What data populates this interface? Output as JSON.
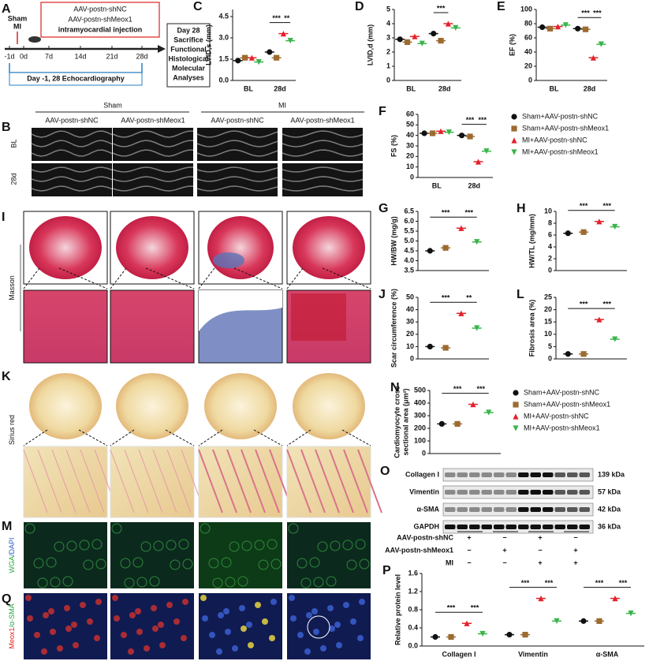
{
  "timeline": {
    "panel": "A",
    "sham": "Sham",
    "mi": "MI",
    "injection": [
      "AAV-postn-shNC",
      "AAV-postn-shMeox1",
      "intramyocardial injection"
    ],
    "days": [
      "-1d",
      "0d",
      "7d",
      "14d",
      "21d",
      "28d"
    ],
    "echo": "Day -1, 28 Echocardiography",
    "endpoint": [
      "Day 28",
      "Sacrifice",
      "Functional",
      "Histological",
      "Molecular",
      "Analyses"
    ]
  },
  "echo": {
    "panel": "B",
    "groups": [
      "Sham",
      "MI"
    ],
    "columns": [
      "AAV-postn-shNC",
      "AAV-postn-shMeox1",
      "AAV-postn-shNC",
      "AAV-postn-shMeox1"
    ],
    "rows": [
      "BL",
      "28d"
    ]
  },
  "masson": {
    "panel": "I",
    "label": [
      "Masson"
    ]
  },
  "sirius": {
    "panel": "K",
    "label": [
      "Sirius red"
    ]
  },
  "wga": {
    "panel": "M",
    "label": [
      "WGA",
      "/DAPI"
    ]
  },
  "meox": {
    "panel": "Q",
    "label": [
      "Meox1",
      "/α-SMA"
    ]
  },
  "blot": {
    "panel": "O",
    "proteins": [
      "Collagen I",
      "Vimentin",
      "α-SMA",
      "GAPDH"
    ],
    "sizes": [
      "139 kDa",
      "57 kDa",
      "42 kDa",
      "36 kDa"
    ],
    "conditions": [
      {
        "name": "AAV-postn-shNC",
        "signs": [
          "+",
          "−",
          "+",
          "−"
        ]
      },
      {
        "name": "AAV-postn-shMeox1",
        "signs": [
          "−",
          "+",
          "−",
          "+"
        ]
      },
      {
        "name": "MI",
        "signs": [
          "−",
          "−",
          "+",
          "+"
        ]
      }
    ]
  },
  "chart_data": [
    {
      "type": "dot",
      "panel": "C",
      "y_label": [
        "LVID,s (mm)"
      ],
      "categories": [
        "BL",
        "28d"
      ],
      "ylim": [
        0,
        5
      ],
      "yticks": [
        {
          "value": 0,
          "label": "0.0"
        },
        1.5,
        {
          "value": 3,
          "label": "3.0"
        },
        4.5
      ],
      "annotations": [
        "***",
        "**"
      ],
      "series": [
        {
          "color": "#111111",
          "values": [
            1.4,
            2.0
          ]
        },
        {
          "color": "#9c6b30",
          "values": [
            1.6,
            1.6
          ]
        },
        {
          "color": "#e4212b",
          "values": [
            1.6,
            3.3
          ]
        },
        {
          "color": "#39b54a",
          "values": [
            1.3,
            2.8
          ]
        }
      ]
    },
    {
      "type": "dot",
      "panel": "D",
      "y_label": [
        "LVID,d (mm)"
      ],
      "categories": [
        "BL",
        "28d"
      ],
      "ylim": [
        0,
        5
      ],
      "yticks": [
        0,
        1,
        2,
        3,
        4,
        5
      ],
      "annotations": [
        "***"
      ],
      "series": [
        {
          "color": "#111111",
          "values": [
            2.9,
            3.3
          ]
        },
        {
          "color": "#9c6b30",
          "values": [
            2.7,
            2.8
          ]
        },
        {
          "color": "#e4212b",
          "values": [
            3.1,
            4.0
          ]
        },
        {
          "color": "#39b54a",
          "values": [
            2.6,
            3.7
          ]
        }
      ]
    },
    {
      "type": "dot",
      "panel": "E",
      "y_label": [
        "EF (%)"
      ],
      "categories": [
        "BL",
        "28d"
      ],
      "ylim": [
        0,
        100
      ],
      "yticks": [
        0,
        20,
        40,
        60,
        80,
        100
      ],
      "annotations": [
        "***",
        "***"
      ],
      "series": [
        {
          "color": "#111111",
          "values": [
            75,
            73
          ]
        },
        {
          "color": "#9c6b30",
          "values": [
            73,
            72
          ]
        },
        {
          "color": "#e4212b",
          "values": [
            76,
            32
          ]
        },
        {
          "color": "#39b54a",
          "values": [
            78,
            51
          ]
        }
      ]
    },
    {
      "type": "dot",
      "panel": "F",
      "y_label": [
        "FS (%)"
      ],
      "categories": [
        "BL",
        "28d"
      ],
      "ylim": [
        0,
        60
      ],
      "yticks": [
        0,
        10,
        20,
        30,
        40,
        50,
        60
      ],
      "annotations": [
        "***",
        "***"
      ],
      "series": [
        {
          "name": "Sham+AAV-postn-shNC",
          "color": "#111111",
          "values": [
            42,
            40
          ]
        },
        {
          "name": "Sham+AAV-postn-shMeox1",
          "color": "#9c6b30",
          "values": [
            42,
            39
          ]
        },
        {
          "name": "MI+AAV-postn-shNC",
          "color": "#e4212b",
          "values": [
            44,
            15
          ]
        },
        {
          "name": "MI+AAV-postn-shMeox1",
          "color": "#39b54a",
          "values": [
            43,
            25
          ]
        }
      ]
    },
    {
      "type": "dot",
      "panel": "G",
      "y_label": [
        "HW/BW (mg/g)"
      ],
      "ylim": [
        3.5,
        6.5
      ],
      "yticks": [
        3.5,
        {
          "value": 4,
          "label": "4.0"
        },
        4.5,
        {
          "value": 5,
          "label": "5.0"
        },
        5.5,
        {
          "value": 6,
          "label": "6.0"
        },
        6.5
      ],
      "annotations": [
        "***",
        "***"
      ],
      "series": [
        {
          "color": "#111111",
          "values": [
            4.5
          ]
        },
        {
          "color": "#9c6b30",
          "values": [
            4.65
          ]
        },
        {
          "color": "#e4212b",
          "values": [
            5.65
          ]
        },
        {
          "color": "#39b54a",
          "values": [
            4.95
          ]
        }
      ]
    },
    {
      "type": "dot",
      "panel": "H",
      "y_label": [
        "HW/TL (mg/mm)"
      ],
      "ylim": [
        0,
        10
      ],
      "yticks": [
        0,
        2,
        4,
        6,
        8,
        10
      ],
      "annotations": [
        "***",
        "***"
      ],
      "series": [
        {
          "color": "#111111",
          "values": [
            6.3
          ]
        },
        {
          "color": "#9c6b30",
          "values": [
            6.5
          ]
        },
        {
          "color": "#e4212b",
          "values": [
            8.3
          ]
        },
        {
          "color": "#39b54a",
          "values": [
            7.4
          ]
        }
      ]
    },
    {
      "type": "dot",
      "panel": "J",
      "y_label": [
        "Scar circumference (%)"
      ],
      "ylim": [
        0,
        50
      ],
      "yticks": [
        0,
        10,
        20,
        30,
        40,
        50
      ],
      "annotations": [
        "***",
        "**"
      ],
      "series": [
        {
          "color": "#111111",
          "values": [
            10
          ]
        },
        {
          "color": "#9c6b30",
          "values": [
            9
          ]
        },
        {
          "color": "#e4212b",
          "values": [
            37
          ]
        },
        {
          "color": "#39b54a",
          "values": [
            25
          ]
        }
      ]
    },
    {
      "type": "dot",
      "panel": "L",
      "y_label": [
        "Fibrosis area (%)"
      ],
      "ylim": [
        0,
        25
      ],
      "yticks": [
        0,
        5,
        10,
        15,
        20,
        25
      ],
      "annotations": [
        "***",
        "***"
      ],
      "series": [
        {
          "color": "#111111",
          "values": [
            2
          ]
        },
        {
          "color": "#9c6b30",
          "values": [
            2
          ]
        },
        {
          "color": "#e4212b",
          "values": [
            16
          ]
        },
        {
          "color": "#39b54a",
          "values": [
            8
          ]
        }
      ]
    },
    {
      "type": "dot",
      "panel": "N",
      "y_label": [
        "Cardiomyocyte cross",
        "sectional area (μm²)"
      ],
      "ylim": [
        0,
        500
      ],
      "yticks": [
        0,
        100,
        200,
        300,
        400,
        500
      ],
      "annotations": [
        "***",
        "***"
      ],
      "series": [
        {
          "name": "Sham+AAV-postn-shNC",
          "color": "#111111",
          "values": [
            235
          ]
        },
        {
          "name": "Sham+AAV-postn-shMeox1",
          "color": "#9c6b30",
          "values": [
            235
          ]
        },
        {
          "name": "MI+AAV-postn-shNC",
          "color": "#e4212b",
          "values": [
            390
          ]
        },
        {
          "name": "MI+AAV-postn-shMeox1",
          "color": "#39b54a",
          "values": [
            325
          ]
        }
      ]
    },
    {
      "type": "dot",
      "panel": "P",
      "y_label": [
        "Relative protein level"
      ],
      "categories": [
        "Collagen I",
        "Vimentin",
        "α-SMA"
      ],
      "ylim": [
        0,
        1.6
      ],
      "yticks": [
        {
          "value": 0,
          "label": "0.0"
        },
        0.4,
        0.8,
        1.2,
        1.6
      ],
      "annotations": [
        "***",
        "***",
        "***",
        "***",
        "***",
        "***"
      ],
      "series": [
        {
          "color": "#111111",
          "values": [
            0.2,
            0.25,
            0.55
          ]
        },
        {
          "color": "#9c6b30",
          "values": [
            0.2,
            0.25,
            0.55
          ]
        },
        {
          "color": "#e4212b",
          "values": [
            0.5,
            1.05,
            1.05
          ]
        },
        {
          "color": "#39b54a",
          "values": [
            0.27,
            0.55,
            0.72
          ]
        }
      ]
    }
  ]
}
